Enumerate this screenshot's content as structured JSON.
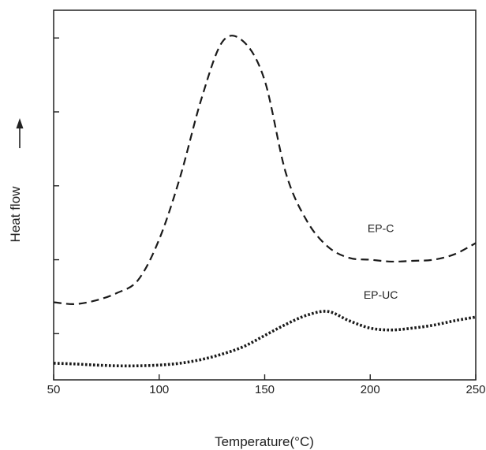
{
  "chart_data": {
    "type": "line",
    "xlabel": "Temperature(°C)",
    "ylabel": "Heat flow",
    "xlim": [
      50,
      250
    ],
    "ylim": [
      0,
      1
    ],
    "x_ticks": [
      50,
      100,
      150,
      200,
      250
    ],
    "x_tick_labels": [
      "50",
      "100",
      "150",
      "200",
      "250"
    ],
    "y_ticks": [
      0.125,
      0.325,
      0.525,
      0.725,
      0.925
    ],
    "y_tick_labels_shown": false,
    "grid": false,
    "legend": "none",
    "ylabel_arrow": "up",
    "series": [
      {
        "name": "EP-C",
        "style": "dashed",
        "color": "#1a1a1a",
        "x": [
          50,
          60,
          70,
          80,
          90,
          100,
          110,
          120,
          130,
          140,
          150,
          160,
          170,
          180,
          190,
          200,
          210,
          220,
          230,
          240,
          250
        ],
        "y": [
          0.21,
          0.205,
          0.215,
          0.235,
          0.27,
          0.38,
          0.55,
          0.76,
          0.915,
          0.915,
          0.81,
          0.56,
          0.43,
          0.36,
          0.33,
          0.325,
          0.32,
          0.322,
          0.325,
          0.34,
          0.37
        ]
      },
      {
        "name": "EP-UC",
        "style": "dotted",
        "color": "#1a1a1a",
        "x": [
          50,
          60,
          70,
          80,
          90,
          100,
          110,
          120,
          130,
          140,
          150,
          160,
          170,
          180,
          190,
          200,
          210,
          220,
          230,
          240,
          250
        ],
        "y": [
          0.045,
          0.043,
          0.04,
          0.038,
          0.038,
          0.04,
          0.045,
          0.055,
          0.07,
          0.09,
          0.12,
          0.15,
          0.175,
          0.185,
          0.16,
          0.14,
          0.135,
          0.14,
          0.148,
          0.16,
          0.17
        ]
      }
    ],
    "annotations": [
      {
        "text": "EP-C",
        "x": 205,
        "y": 0.4
      },
      {
        "text": "EP-UC",
        "x": 205,
        "y": 0.22
      }
    ]
  }
}
